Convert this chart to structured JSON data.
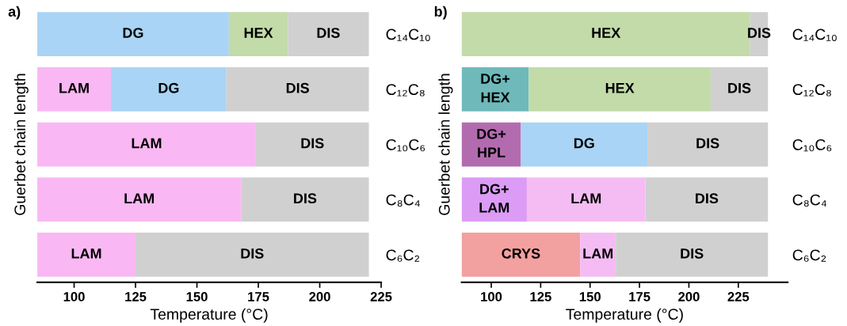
{
  "chart_data": [
    {
      "type": "bar",
      "orientation": "horizontal",
      "title": "a)",
      "xlabel": "Temperature (°C)",
      "ylabel": "Guerbet chain length",
      "categories": [
        "C₁₄C₁₀",
        "C₁₂C₈",
        "C₁₀C₆",
        "C₈C₄",
        "C₆C₂"
      ],
      "series": [
        {
          "base": [
            85,
            85,
            85,
            85,
            85
          ],
          "values": [
            78,
            30,
            89,
            83,
            40
          ],
          "colors": [
            "#a9d4f5",
            "#f9b8f3",
            "#f9b8f3",
            "#f9b8f3",
            "#f9b8f3"
          ],
          "value_labels": [
            "DG",
            "LAM",
            "LAM",
            "LAM",
            "LAM"
          ]
        },
        {
          "base": [
            163,
            115,
            174,
            168,
            125
          ],
          "values": [
            24,
            47,
            46,
            52,
            95
          ],
          "colors": [
            "#c2dba8",
            "#a9d4f5",
            "#d0d0d0",
            "#d0d0d0",
            "#d0d0d0"
          ],
          "value_labels": [
            "HEX",
            "DG",
            "DIS",
            "DIS",
            "DIS"
          ]
        },
        {
          "base": [
            187,
            162,
            null,
            null,
            null
          ],
          "values": [
            33,
            58,
            null,
            null,
            null
          ],
          "colors": [
            "#d0d0d0",
            "#d0d0d0",
            null,
            null,
            null
          ],
          "value_labels": [
            "DIS",
            "DIS",
            null,
            null,
            null
          ]
        }
      ],
      "xlim": [
        85,
        225
      ],
      "xticks": [
        100,
        125,
        150,
        175,
        200,
        225
      ],
      "grid": false,
      "legend": false
    },
    {
      "type": "bar",
      "orientation": "horizontal",
      "title": "b)",
      "xlabel": "Temperature (°C)",
      "ylabel": "Guerbet chain length",
      "categories": [
        "C₁₄C₁₀",
        "C₁₂C₈",
        "C₁₀C₆",
        "C₈C₄",
        "C₆C₂"
      ],
      "series": [
        {
          "base": [
            85,
            85,
            85,
            85,
            85
          ],
          "values": [
            146,
            34,
            30,
            33,
            60
          ],
          "colors": [
            "#c2dba8",
            "#6fb9bb",
            "#b36bb0",
            "#dc9cf5",
            "#f3a0a0"
          ],
          "value_labels": [
            "HEX",
            "DG+\nHEX",
            "DG+\nHPL",
            "DG+\nLAM",
            "CRYS"
          ]
        },
        {
          "base": [
            231,
            119,
            115,
            118,
            145
          ],
          "values": [
            9,
            92,
            64,
            60,
            18
          ],
          "colors": [
            "#d0d0d0",
            "#c2dba8",
            "#a9d4f5",
            "#f4bcf3",
            "#f4bcf3"
          ],
          "value_labels": [
            "DIS",
            "HEX",
            "DG",
            "LAM",
            "LAM"
          ]
        },
        {
          "base": [
            null,
            211,
            179,
            178,
            163
          ],
          "values": [
            null,
            29,
            61,
            62,
            77
          ],
          "colors": [
            null,
            "#d0d0d0",
            "#d0d0d0",
            "#d0d0d0",
            "#d0d0d0"
          ],
          "value_labels": [
            null,
            "DIS",
            "DIS",
            "DIS",
            "DIS"
          ]
        }
      ],
      "xlim": [
        85,
        250
      ],
      "xticks": [
        100,
        125,
        150,
        175,
        200,
        225
      ],
      "grid": false,
      "legend": false
    }
  ]
}
